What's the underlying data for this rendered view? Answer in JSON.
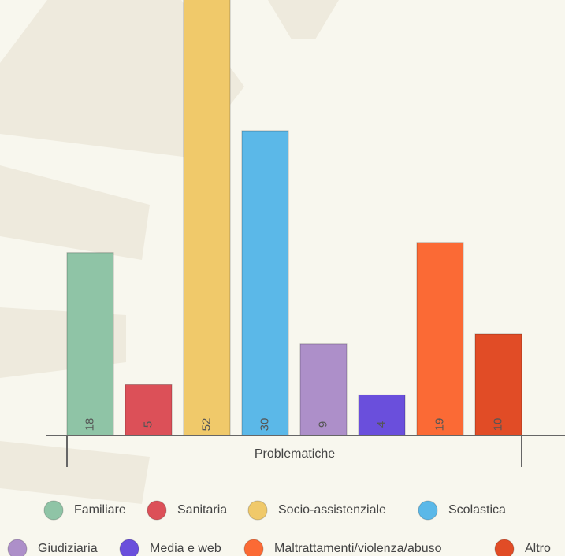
{
  "chart_data": {
    "type": "bar",
    "x_label": "Problematiche",
    "categories": [
      "Familiare",
      "Sanitaria",
      "Socio-assistenziale",
      "Scolastica",
      "Giudiziaria",
      "Media e web",
      "Maltrattamenti/violenza/abuso",
      "Altro"
    ],
    "values": [
      18,
      5,
      52,
      30,
      9,
      4,
      19,
      10
    ],
    "colors": [
      "#8fc4a6",
      "#dc5058",
      "#f0c96a",
      "#5bb8e8",
      "#ad8fc9",
      "#6a4fdc",
      "#fb6a35",
      "#e14c26"
    ],
    "legend": "bottom"
  }
}
